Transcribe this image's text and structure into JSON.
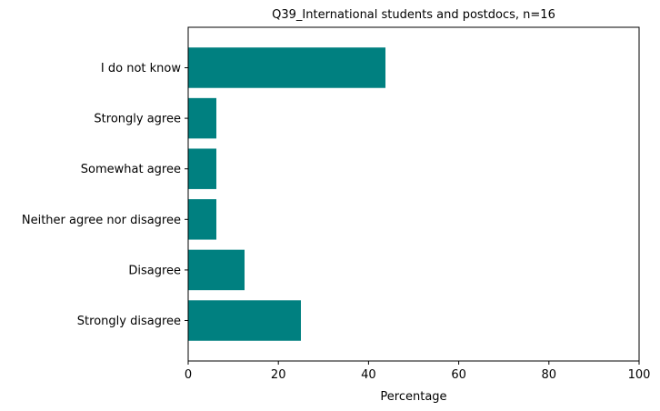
{
  "chart_data": {
    "type": "bar",
    "orientation": "horizontal",
    "title": "Q39_International students and postdocs, n=16",
    "xlabel": "Percentage",
    "ylabel": "",
    "xlim": [
      0,
      100
    ],
    "xticks": [
      0,
      20,
      40,
      60,
      80,
      100
    ],
    "grid": false,
    "categories": [
      "Strongly disagree",
      "Disagree",
      "Neither agree nor disagree",
      "Somewhat agree",
      "Strongly agree",
      "I do not know"
    ],
    "values": [
      25.0,
      12.5,
      6.25,
      6.25,
      6.25,
      43.75
    ],
    "color": "#008080"
  }
}
